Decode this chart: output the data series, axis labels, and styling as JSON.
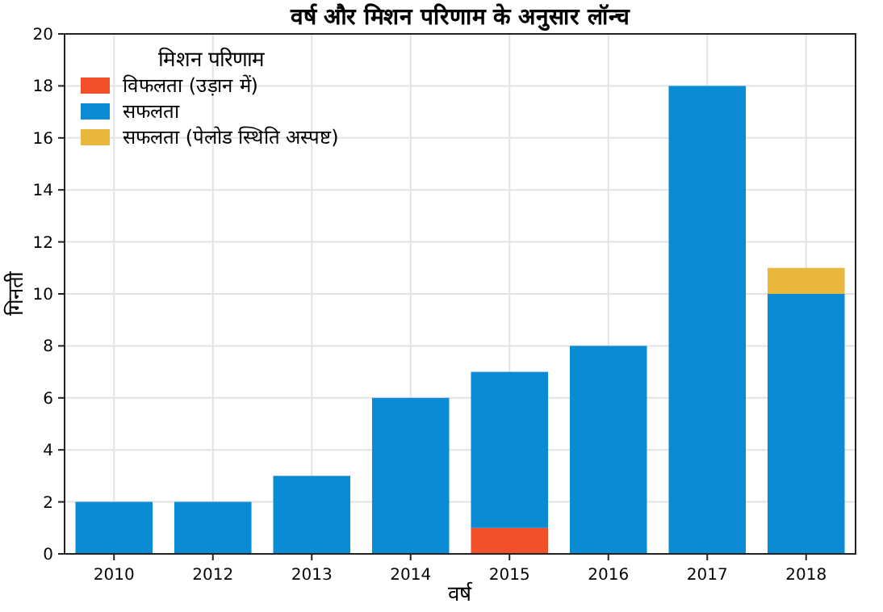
{
  "chart_data": {
    "type": "bar",
    "title": "वर्ष और मिशन परिणाम के अनुसार लॉन्च",
    "xlabel": "वर्ष",
    "ylabel": "गिनती",
    "legend_title": "मिशन परिणाम",
    "categories": [
      "2010",
      "2012",
      "2013",
      "2014",
      "2015",
      "2016",
      "2017",
      "2018"
    ],
    "stacked": true,
    "series": [
      {
        "name": "विफलता (उड़ान में)",
        "color": "#f2502a",
        "values": [
          0,
          0,
          0,
          0,
          1,
          0,
          0,
          0
        ]
      },
      {
        "name": "सफलता",
        "color": "#0b8bd3",
        "values": [
          2,
          2,
          3,
          6,
          6,
          8,
          18,
          10
        ]
      },
      {
        "name": "सफलता (पेलोड स्थिति अस्पष्ट)",
        "color": "#e9b83c",
        "values": [
          0,
          0,
          0,
          0,
          0,
          0,
          0,
          1
        ]
      }
    ],
    "ylim": [
      0,
      20
    ],
    "yticks": [
      0,
      2,
      4,
      6,
      8,
      10,
      12,
      14,
      16,
      18,
      20
    ],
    "grid": true,
    "legend": "top left"
  }
}
